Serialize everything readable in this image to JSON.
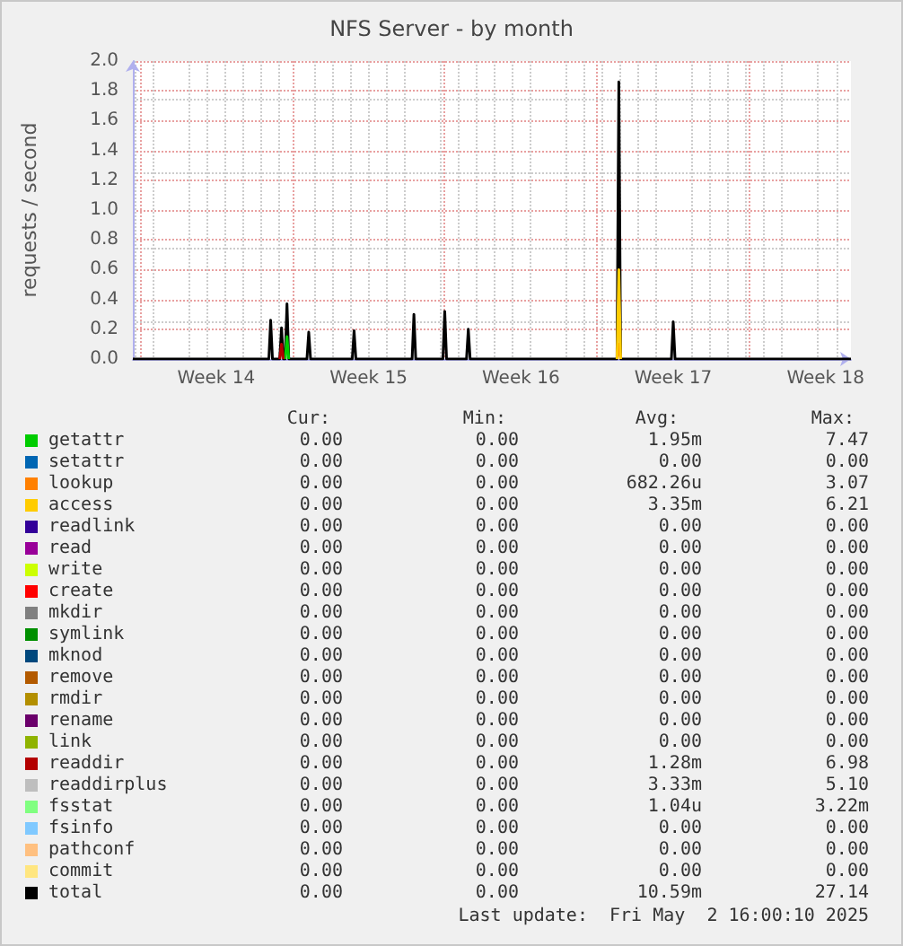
{
  "chart_data": {
    "type": "line",
    "title": "NFS Server - by month",
    "ylabel": "requests / second",
    "x": [
      "2025-03-30T16:00",
      "2025-04-05T22:00",
      "2025-04-06T00:00",
      "2025-04-06T02:00",
      "2025-04-06T10:00",
      "2025-04-06T12:00",
      "2025-04-06T14:00",
      "2025-04-06T16:00",
      "2025-04-06T18:00",
      "2025-04-06T20:00",
      "2025-04-07T16:00",
      "2025-04-07T18:00",
      "2025-04-07T20:00",
      "2025-04-09T18:00",
      "2025-04-09T20:00",
      "2025-04-09T22:00",
      "2025-04-12T12:00",
      "2025-04-12T14:00",
      "2025-04-12T16:00",
      "2025-04-13T22:00",
      "2025-04-14T00:00",
      "2025-04-14T02:00",
      "2025-04-15T00:00",
      "2025-04-15T02:00",
      "2025-04-15T04:00",
      "2025-04-21T22:00",
      "2025-04-22T00:00",
      "2025-04-22T02:00",
      "2025-04-24T10:00",
      "2025-04-24T12:00",
      "2025-04-24T14:00",
      "2025-05-02T16:00"
    ],
    "xlim": [
      "2025-03-30T16:00",
      "2025-05-02T16:00"
    ],
    "xticks": [
      {
        "value": "2025-03-31",
        "label": null
      },
      {
        "value": "2025-04-03T12:00",
        "label": "Week 14"
      },
      {
        "value": "2025-04-07",
        "label": null
      },
      {
        "value": "2025-04-10T12:00",
        "label": "Week 15"
      },
      {
        "value": "2025-04-14",
        "label": null
      },
      {
        "value": "2025-04-17T12:00",
        "label": "Week 16"
      },
      {
        "value": "2025-04-21",
        "label": null
      },
      {
        "value": "2025-04-24T12:00",
        "label": "Week 17"
      },
      {
        "value": "2025-04-28",
        "label": null
      },
      {
        "value": "2025-05-01T12:00",
        "label": "Week 18"
      }
    ],
    "ylim": [
      0,
      2.0
    ],
    "yticks": [
      {
        "value": 0,
        "label": "0.0"
      },
      0.2,
      0.4,
      0.6,
      0.8,
      {
        "value": 1,
        "label": "1.0"
      },
      1.2,
      1.4,
      1.6,
      1.8,
      {
        "value": 2,
        "label": "2.0"
      }
    ],
    "grid": true,
    "legend": "bottom",
    "marker": "none",
    "line_style": "solid",
    "series": [
      {
        "name": "getattr",
        "color": "#00cc00",
        "values": [
          null,
          null,
          null,
          null,
          null,
          null,
          null,
          0,
          0.15,
          0,
          null,
          null,
          null,
          null,
          null,
          null,
          null,
          null,
          null,
          null,
          null,
          null,
          null,
          null,
          null,
          null,
          null,
          null,
          null,
          null,
          null,
          null
        ]
      },
      {
        "name": "setattr",
        "color": "#0066b3",
        "values": [
          null,
          null,
          null,
          null,
          null,
          null,
          null,
          null,
          null,
          null,
          null,
          null,
          null,
          null,
          null,
          null,
          null,
          null,
          null,
          null,
          null,
          null,
          null,
          null,
          null,
          null,
          null,
          null,
          null,
          null,
          null,
          null
        ]
      },
      {
        "name": "lookup",
        "color": "#ff8000",
        "values": [
          null,
          null,
          null,
          null,
          null,
          null,
          null,
          null,
          null,
          null,
          null,
          null,
          null,
          null,
          null,
          null,
          null,
          null,
          null,
          null,
          null,
          null,
          null,
          null,
          null,
          0,
          0.1,
          0,
          null,
          null,
          null,
          null
        ]
      },
      {
        "name": "access",
        "color": "#ffcc00",
        "values": [
          null,
          null,
          null,
          null,
          null,
          null,
          null,
          null,
          null,
          null,
          null,
          null,
          null,
          null,
          null,
          null,
          null,
          null,
          null,
          null,
          null,
          null,
          null,
          null,
          null,
          0,
          0.6,
          0,
          null,
          null,
          null,
          null
        ]
      },
      {
        "name": "readlink",
        "color": "#330099",
        "values": [
          null,
          null,
          null,
          null,
          null,
          null,
          null,
          null,
          null,
          null,
          null,
          null,
          null,
          null,
          null,
          null,
          null,
          null,
          null,
          null,
          null,
          null,
          null,
          null,
          null,
          null,
          null,
          null,
          null,
          null,
          null,
          null
        ]
      },
      {
        "name": "read",
        "color": "#990099",
        "values": [
          null,
          null,
          null,
          null,
          null,
          null,
          null,
          null,
          null,
          null,
          null,
          null,
          null,
          null,
          null,
          null,
          null,
          null,
          null,
          null,
          null,
          null,
          null,
          null,
          null,
          null,
          null,
          null,
          null,
          null,
          null,
          null
        ]
      },
      {
        "name": "write",
        "color": "#ccff00",
        "values": [
          null,
          null,
          null,
          null,
          null,
          null,
          null,
          null,
          null,
          null,
          null,
          null,
          null,
          null,
          null,
          null,
          null,
          null,
          null,
          null,
          null,
          null,
          null,
          null,
          null,
          null,
          null,
          null,
          null,
          null,
          null,
          null
        ]
      },
      {
        "name": "create",
        "color": "#ff0000",
        "values": [
          null,
          null,
          null,
          null,
          null,
          null,
          null,
          null,
          null,
          null,
          null,
          null,
          null,
          null,
          null,
          null,
          null,
          null,
          null,
          null,
          null,
          null,
          null,
          null,
          null,
          null,
          null,
          null,
          null,
          null,
          null,
          null
        ]
      },
      {
        "name": "mkdir",
        "color": "#808080",
        "values": [
          null,
          null,
          null,
          null,
          null,
          null,
          null,
          null,
          null,
          null,
          null,
          null,
          null,
          null,
          null,
          null,
          null,
          null,
          null,
          null,
          null,
          null,
          null,
          null,
          null,
          null,
          null,
          null,
          null,
          null,
          null,
          null
        ]
      },
      {
        "name": "symlink",
        "color": "#008f00",
        "values": [
          null,
          null,
          null,
          null,
          null,
          null,
          null,
          null,
          null,
          null,
          null,
          null,
          null,
          null,
          null,
          null,
          null,
          null,
          null,
          null,
          null,
          null,
          null,
          null,
          null,
          null,
          null,
          null,
          null,
          null,
          null,
          null
        ]
      },
      {
        "name": "mknod",
        "color": "#00487d",
        "values": [
          null,
          null,
          null,
          null,
          null,
          null,
          null,
          null,
          null,
          null,
          null,
          null,
          null,
          null,
          null,
          null,
          null,
          null,
          null,
          null,
          null,
          null,
          null,
          null,
          null,
          null,
          null,
          null,
          null,
          null,
          null,
          null
        ]
      },
      {
        "name": "remove",
        "color": "#b35a00",
        "values": [
          null,
          null,
          null,
          null,
          null,
          null,
          null,
          null,
          null,
          null,
          null,
          null,
          null,
          null,
          null,
          null,
          null,
          null,
          null,
          null,
          null,
          null,
          null,
          null,
          null,
          null,
          null,
          null,
          null,
          null,
          null,
          null
        ]
      },
      {
        "name": "rmdir",
        "color": "#b38f00",
        "values": [
          null,
          null,
          null,
          null,
          null,
          null,
          null,
          null,
          null,
          null,
          null,
          null,
          null,
          null,
          null,
          null,
          null,
          null,
          null,
          null,
          null,
          null,
          null,
          null,
          null,
          null,
          null,
          null,
          null,
          null,
          null,
          null
        ]
      },
      {
        "name": "rename",
        "color": "#6b006b",
        "values": [
          null,
          null,
          null,
          null,
          null,
          null,
          null,
          null,
          null,
          null,
          null,
          null,
          null,
          null,
          null,
          null,
          null,
          null,
          null,
          null,
          null,
          null,
          null,
          null,
          null,
          null,
          null,
          null,
          null,
          null,
          null,
          null
        ]
      },
      {
        "name": "link",
        "color": "#8fb300",
        "values": [
          null,
          null,
          null,
          null,
          null,
          null,
          null,
          null,
          null,
          null,
          null,
          null,
          null,
          null,
          null,
          null,
          null,
          null,
          null,
          null,
          null,
          null,
          null,
          null,
          null,
          null,
          null,
          null,
          null,
          null,
          null,
          null
        ]
      },
      {
        "name": "readdir",
        "color": "#b30000",
        "values": [
          null,
          null,
          null,
          null,
          0,
          0.1,
          0,
          null,
          null,
          null,
          null,
          null,
          null,
          null,
          null,
          null,
          null,
          null,
          null,
          null,
          null,
          null,
          null,
          null,
          null,
          null,
          null,
          null,
          null,
          null,
          null,
          null
        ]
      },
      {
        "name": "readdirplus",
        "color": "#bebebe",
        "values": [
          null,
          null,
          null,
          null,
          null,
          null,
          null,
          null,
          null,
          null,
          null,
          null,
          null,
          null,
          null,
          null,
          null,
          null,
          null,
          null,
          null,
          null,
          null,
          null,
          null,
          null,
          null,
          null,
          null,
          null,
          null,
          null
        ]
      },
      {
        "name": "fsstat",
        "color": "#80ff80",
        "values": [
          null,
          null,
          null,
          null,
          null,
          null,
          null,
          null,
          null,
          null,
          null,
          null,
          null,
          null,
          null,
          null,
          null,
          null,
          null,
          null,
          null,
          null,
          null,
          null,
          null,
          null,
          null,
          null,
          null,
          null,
          null,
          null
        ]
      },
      {
        "name": "fsinfo",
        "color": "#80c9ff",
        "values": [
          null,
          null,
          null,
          null,
          null,
          null,
          null,
          null,
          null,
          null,
          null,
          null,
          null,
          null,
          null,
          null,
          null,
          null,
          null,
          null,
          null,
          null,
          null,
          null,
          null,
          null,
          null,
          null,
          null,
          null,
          null,
          null
        ]
      },
      {
        "name": "pathconf",
        "color": "#ffc080",
        "values": [
          null,
          null,
          null,
          null,
          null,
          null,
          null,
          null,
          null,
          null,
          null,
          null,
          null,
          null,
          null,
          null,
          null,
          null,
          null,
          null,
          null,
          null,
          null,
          null,
          null,
          null,
          null,
          null,
          null,
          null,
          null,
          null
        ]
      },
      {
        "name": "commit",
        "color": "#ffe680",
        "values": [
          null,
          null,
          null,
          null,
          null,
          null,
          null,
          null,
          null,
          null,
          null,
          null,
          null,
          null,
          null,
          null,
          null,
          null,
          null,
          null,
          null,
          null,
          null,
          null,
          null,
          null,
          null,
          null,
          null,
          null,
          null,
          null
        ]
      },
      {
        "name": "total",
        "color": "#000000",
        "values": [
          0,
          0,
          0.26,
          0,
          0,
          0.21,
          0,
          0,
          0.37,
          0,
          0,
          0.18,
          0,
          0,
          0.19,
          0,
          0,
          0.3,
          0,
          0,
          0.32,
          0,
          0,
          0.2,
          0,
          0,
          1.86,
          0,
          0,
          0.25,
          0,
          0
        ]
      }
    ],
    "annotations": [
      "Cur:",
      "Min:",
      "Avg:",
      "Max:",
      "0.00",
      "0.00",
      "1.95m",
      "7.47",
      "0.00",
      "0.00",
      "0.00",
      "0.00",
      "0.00",
      "0.00",
      "682.26u",
      "3.07",
      "0.00",
      "0.00",
      "3.35m",
      "6.21",
      "0.00",
      "0.00",
      "0.00",
      "0.00",
      "0.00",
      "0.00",
      "0.00",
      "0.00",
      "0.00",
      "0.00",
      "0.00",
      "0.00",
      "0.00",
      "0.00",
      "0.00",
      "0.00",
      "0.00",
      "0.00",
      "0.00",
      "0.00",
      "0.00",
      "0.00",
      "0.00",
      "0.00",
      "0.00",
      "0.00",
      "0.00",
      "0.00",
      "0.00",
      "0.00",
      "0.00",
      "0.00",
      "0.00",
      "0.00",
      "0.00",
      "0.00",
      "0.00",
      "0.00",
      "0.00",
      "0.00",
      "0.00",
      "0.00",
      "0.00",
      "0.00",
      "0.00",
      "0.00",
      "1.28m",
      "6.98",
      "0.00",
      "0.00",
      "3.33m",
      "5.10",
      "0.00",
      "0.00",
      "1.04u",
      "3.22m",
      "0.00",
      "0.00",
      "0.00",
      "0.00",
      "0.00",
      "0.00",
      "0.00",
      "0.00",
      "0.00",
      "0.00",
      "0.00",
      "0.00",
      "0.00",
      "0.00",
      "10.59m",
      "27.14",
      "Last update:  Fri May  2 16:00:10 2025"
    ]
  }
}
